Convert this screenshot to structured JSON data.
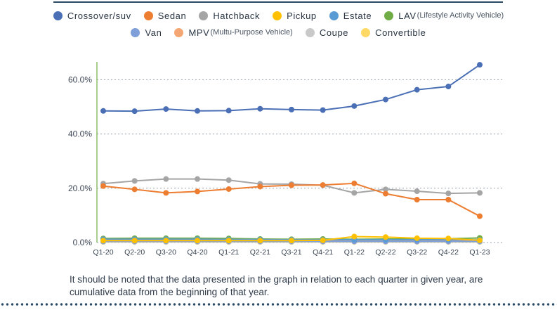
{
  "chart_data": {
    "type": "line",
    "title": "",
    "xlabel": "",
    "ylabel": "",
    "categories": [
      "Q1-20",
      "Q2-20",
      "Q3-20",
      "Q4-20",
      "Q1-21",
      "Q2-21",
      "Q3-21",
      "Q4-21",
      "Q1-22",
      "Q2-22",
      "Q3-22",
      "Q4-22",
      "Q1-23"
    ],
    "yticks": [
      "0.0%",
      "20.0%",
      "40.0%",
      "60.0%"
    ],
    "ylim": [
      0,
      70
    ],
    "grid": "horizontal-dotted",
    "legend_position": "top",
    "series": [
      {
        "name": "Crossover/suv",
        "note": "",
        "color": "#4a6fb5",
        "values": [
          48.5,
          48.4,
          49.2,
          48.5,
          48.6,
          49.3,
          49.0,
          48.8,
          50.3,
          52.7,
          56.3,
          57.5,
          65.5
        ]
      },
      {
        "name": "Sedan",
        "note": "",
        "color": "#ed7d31",
        "values": [
          20.8,
          19.6,
          18.3,
          18.8,
          19.7,
          20.6,
          21.1,
          21.2,
          21.8,
          18.0,
          15.8,
          15.8,
          9.7
        ]
      },
      {
        "name": "Hatchback",
        "note": "",
        "color": "#a5a5a5",
        "values": [
          21.7,
          22.7,
          23.4,
          23.4,
          23.0,
          21.6,
          21.5,
          21.1,
          18.3,
          19.6,
          18.9,
          18.1,
          18.3
        ]
      },
      {
        "name": "Pickup",
        "note": "",
        "color": "#ffc000",
        "values": [
          0.7,
          0.7,
          0.7,
          0.7,
          0.7,
          0.7,
          0.7,
          0.8,
          2.2,
          2.0,
          1.6,
          1.5,
          0.8
        ]
      },
      {
        "name": "Estate",
        "note": "",
        "color": "#5b9bd5",
        "values": [
          1.2,
          1.2,
          1.2,
          1.2,
          1.1,
          1.1,
          1.0,
          1.0,
          1.0,
          1.0,
          1.0,
          1.0,
          1.0
        ]
      },
      {
        "name": "LAV",
        "note": "(Lifestyle Activity Vehicle)",
        "color": "#70ad47",
        "values": [
          1.5,
          1.6,
          1.6,
          1.6,
          1.5,
          1.3,
          1.2,
          1.3,
          1.2,
          1.3,
          1.3,
          1.4,
          1.7
        ]
      },
      {
        "name": "Van",
        "note": "",
        "color": "#7f9fd8",
        "values": [
          0.4,
          0.4,
          0.4,
          0.4,
          0.4,
          0.4,
          0.4,
          0.4,
          0.4,
          0.4,
          0.4,
          0.4,
          0.4
        ]
      },
      {
        "name": "MPV",
        "note": "(Multu-Purpose Vehicle)",
        "color": "#f4a773",
        "values": [
          0.9,
          0.9,
          0.9,
          0.9,
          0.9,
          0.8,
          0.8,
          0.8,
          0.8,
          0.8,
          0.8,
          0.8,
          0.7
        ]
      },
      {
        "name": "Coupe",
        "note": "",
        "color": "#c9c9c9",
        "values": [
          0.3,
          0.3,
          0.3,
          0.3,
          0.3,
          0.3,
          0.3,
          0.3,
          0.3,
          0.3,
          0.3,
          0.3,
          0.3
        ]
      },
      {
        "name": "Convertible",
        "note": "",
        "color": "#ffd966",
        "values": [
          0.2,
          0.2,
          0.2,
          0.2,
          0.2,
          0.2,
          0.2,
          0.2,
          0.2,
          0.2,
          0.2,
          0.2,
          0.2
        ]
      }
    ]
  },
  "footnote": "It should be noted that the data presented in the graph in relation to each quarter in given year, are cumulative data from the beginning of that year."
}
